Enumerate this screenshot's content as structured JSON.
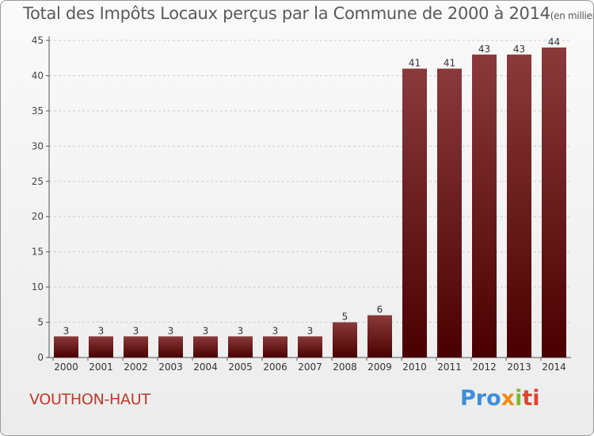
{
  "chart_data": {
    "type": "bar",
    "title": "Total des Impôts Locaux perçus par la Commune de 2000 à 2014",
    "title_unit": "(en milliers d'€)",
    "categories": [
      "2000",
      "2001",
      "2002",
      "2003",
      "2004",
      "2005",
      "2006",
      "2007",
      "2008",
      "2009",
      "2010",
      "2011",
      "2012",
      "2013",
      "2014"
    ],
    "values": [
      3,
      3,
      3,
      3,
      3,
      3,
      3,
      3,
      5,
      6,
      41,
      41,
      43,
      43,
      44
    ],
    "ylim": [
      0,
      45
    ],
    "yticks": [
      0,
      5,
      10,
      15,
      20,
      25,
      30,
      35,
      40,
      45
    ],
    "grid": true,
    "xlabel": "",
    "ylabel": ""
  },
  "colors": {
    "bar_top": "#8a3a3a",
    "bar_bottom": "#4a0000",
    "grid": "#cccccc",
    "commune": "#c0392b"
  },
  "footer": {
    "commune": "VOUTHON-HAUT",
    "logo": {
      "part1": "Pro",
      "part2": "x",
      "part3": "i",
      "part4": "ti"
    }
  }
}
